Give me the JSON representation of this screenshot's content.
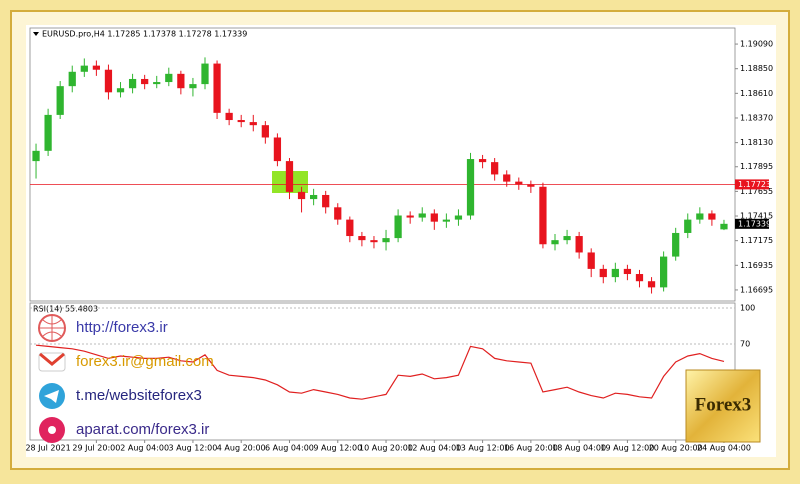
{
  "chart_data": [
    {
      "type": "candlestick",
      "title": "EURUSD.pro,H4  1.17285 1.17378 1.17278 1.17339",
      "open": [
        1.1795,
        1.1805,
        1.184,
        1.1868,
        1.1882,
        1.1888,
        1.1884,
        1.1862,
        1.1866,
        1.1875,
        1.187,
        1.1872,
        1.188,
        1.1866,
        1.187,
        1.189,
        1.1842,
        1.1835,
        1.1833,
        1.183,
        1.1818,
        1.1795,
        1.1765,
        1.1758,
        1.1762,
        1.175,
        1.1738,
        1.1722,
        1.1718,
        1.1716,
        1.172,
        1.1742,
        1.174,
        1.1744,
        1.1736,
        1.1738,
        1.1742,
        1.1797,
        1.1794,
        1.1782,
        1.1775,
        1.1772,
        1.177,
        1.1714,
        1.1718,
        1.1722,
        1.1706,
        1.169,
        1.1682,
        1.169,
        1.1685,
        1.1678,
        1.1672,
        1.1702,
        1.1725,
        1.1738,
        1.1744,
        1.17285
      ],
      "high": [
        1.1812,
        1.1846,
        1.1873,
        1.1888,
        1.1895,
        1.1893,
        1.1889,
        1.1872,
        1.188,
        1.1879,
        1.1878,
        1.1886,
        1.1883,
        1.1876,
        1.1896,
        1.1893,
        1.1846,
        1.184,
        1.184,
        1.1834,
        1.1822,
        1.1798,
        1.177,
        1.1768,
        1.1766,
        1.1754,
        1.1741,
        1.1726,
        1.1722,
        1.1728,
        1.1748,
        1.1746,
        1.175,
        1.1748,
        1.1744,
        1.1748,
        1.1803,
        1.1801,
        1.1798,
        1.1786,
        1.1779,
        1.1776,
        1.1774,
        1.1724,
        1.1728,
        1.1726,
        1.171,
        1.1694,
        1.1696,
        1.1694,
        1.1689,
        1.1682,
        1.1707,
        1.173,
        1.1744,
        1.175,
        1.1747,
        1.17378
      ],
      "low": [
        1.1778,
        1.18,
        1.1836,
        1.1862,
        1.1877,
        1.1878,
        1.1855,
        1.1857,
        1.1861,
        1.1865,
        1.1866,
        1.1868,
        1.186,
        1.1858,
        1.1865,
        1.1836,
        1.183,
        1.1828,
        1.1824,
        1.1812,
        1.179,
        1.1758,
        1.1745,
        1.1752,
        1.1744,
        1.1733,
        1.1716,
        1.1712,
        1.171,
        1.1708,
        1.1716,
        1.1734,
        1.1736,
        1.1728,
        1.173,
        1.1732,
        1.1738,
        1.1788,
        1.1776,
        1.177,
        1.1767,
        1.1764,
        1.171,
        1.1708,
        1.1714,
        1.17,
        1.1682,
        1.1676,
        1.1677,
        1.1679,
        1.1672,
        1.1666,
        1.1668,
        1.1698,
        1.172,
        1.1734,
        1.1732,
        1.17278
      ],
      "close": [
        1.1805,
        1.184,
        1.1868,
        1.1882,
        1.1888,
        1.1884,
        1.1862,
        1.1866,
        1.1875,
        1.187,
        1.1872,
        1.188,
        1.1866,
        1.187,
        1.189,
        1.1842,
        1.1835,
        1.1833,
        1.183,
        1.1818,
        1.1795,
        1.1765,
        1.1758,
        1.1762,
        1.175,
        1.1738,
        1.1722,
        1.1718,
        1.1716,
        1.172,
        1.1742,
        1.174,
        1.1744,
        1.1736,
        1.1738,
        1.1742,
        1.1797,
        1.1794,
        1.1782,
        1.1775,
        1.1772,
        1.177,
        1.1714,
        1.1718,
        1.1722,
        1.1706,
        1.169,
        1.1682,
        1.169,
        1.1685,
        1.1678,
        1.1672,
        1.1702,
        1.1725,
        1.1738,
        1.1744,
        1.1738,
        1.17339
      ],
      "up_color": "#2fb52f",
      "down_color": "#e8141e",
      "ylim": [
        1.16597,
        1.19227
      ],
      "yticks": [
        {
          "value": 1.1909,
          "label": "1.19090"
        },
        {
          "value": 1.1885,
          "label": "1.18850"
        },
        {
          "value": 1.1861,
          "label": "1.18610"
        },
        {
          "value": 1.1837,
          "label": "1.18370"
        },
        {
          "value": 1.1813,
          "label": "1.18130"
        },
        1.17895,
        1.17655,
        1.17415,
        1.17175,
        1.16935,
        1.16695
      ],
      "hlines": [
        {
          "value": 1.17723,
          "color": "#e8141e"
        }
      ]
    },
    {
      "type": "line",
      "title": "RSI(14) 55.4803",
      "categories": [
        null,
        "28 Jul 2021",
        null,
        null,
        null,
        "29 Jul 20:00",
        null,
        null,
        null,
        "2 Aug 04:00",
        null,
        null,
        null,
        "3 Aug 12:00",
        null,
        null,
        null,
        "4 Aug 20:00",
        null,
        null,
        null,
        "6 Aug 04:00",
        null,
        null,
        null,
        "9 Aug 12:00",
        null,
        null,
        null,
        "10 Aug 20:00",
        null,
        null,
        null,
        "12 Aug 04:00",
        null,
        null,
        null,
        "13 Aug 12:00",
        null,
        null,
        null,
        "16 Aug 20:00",
        null,
        null,
        null,
        "18 Aug 04:00",
        null,
        null,
        null,
        "19 Aug 12:00",
        null,
        null,
        null,
        "20 Aug 20:00",
        null,
        null,
        null,
        "24 Aug 04:00"
      ],
      "values": [
        69,
        68,
        67,
        66,
        64,
        61,
        58,
        60,
        59,
        58,
        58,
        59,
        56,
        55,
        61,
        48,
        44,
        43,
        42,
        40,
        36,
        30,
        29,
        32,
        30,
        28,
        25,
        24,
        26,
        28,
        44,
        43,
        45,
        41,
        42,
        44,
        68,
        66,
        58,
        56,
        55,
        54,
        30,
        32,
        34,
        30,
        27,
        25,
        29,
        28,
        26,
        25,
        43,
        55,
        60,
        62,
        58,
        55.4803
      ],
      "color": "#e02020",
      "ylim": [
        0,
        100
      ],
      "yticks": [
        100,
        70
      ]
    }
  ],
  "overlay": {
    "links": [
      "http://forex3.ir",
      "forex3.ir@gmail.com",
      "t.me/websiteforex3",
      "aparat.com/forex3.ir"
    ],
    "logo": "Forex3"
  }
}
